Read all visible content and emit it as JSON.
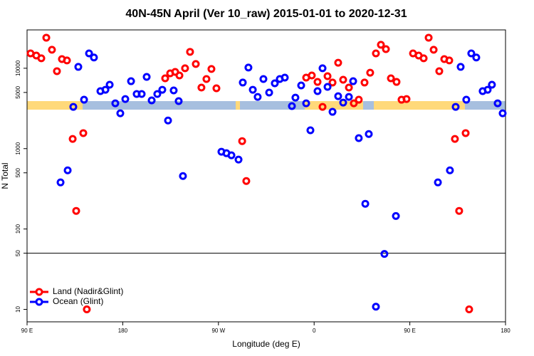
{
  "chart_data": {
    "type": "scatter",
    "title": "40N-45N April (Ver 10_raw)   2015-01-01 to 2020-12-31",
    "x_label": "Longitude (deg E)",
    "y_label": "N Total",
    "y_scale": "log",
    "legend": "bottomleft",
    "hline": 50,
    "xlim": [
      90,
      540
    ],
    "ylim": [
      7,
      30000
    ],
    "xticks": [
      {
        "value": 90,
        "label": "90 E"
      },
      {
        "value": 180,
        "label": "180"
      },
      {
        "value": 270,
        "label": "90 W"
      },
      {
        "value": 360,
        "label": "0"
      },
      {
        "value": 450,
        "label": "90 E"
      },
      {
        "value": 540,
        "label": "180"
      }
    ],
    "yticks": [
      10,
      50,
      100,
      500,
      1000,
      5000,
      10000
    ],
    "series": [
      {
        "name": "Land (Nadir&Glint)",
        "color": "#ff0000",
        "x": [
          93.3,
          98.7,
          103.4,
          108.1,
          113.4,
          118.1,
          122.8,
          127.5,
          132.9,
          136.2,
          142.9,
          146.2,
          219.9,
          224.6,
          229.3,
          233.3,
          238.6,
          243.3,
          248.7,
          254,
          258.7,
          263.4,
          268.1,
          292.3,
          296.2,
          352.5,
          357.8,
          363.2,
          367.9,
          372.6,
          377.3,
          382.6,
          387.3,
          392.7,
          397.3,
          402,
          407.4,
          412.7,
          418.1,
          422.8,
          427.5,
          432.2,
          437.5,
          442.2,
          446.9,
          453,
          458.3,
          463,
          467.7,
          472.4,
          477.7,
          482.4,
          487.1,
          492.4,
          496.4,
          502.5,
          505.8
        ],
        "values": [
          15300,
          14400,
          13300,
          24000,
          17000,
          9200,
          13000,
          12500,
          1320,
          168,
          1560,
          10,
          7500,
          8650,
          9000,
          8130,
          10000,
          16000,
          11300,
          5750,
          7350,
          9800,
          5630,
          1240,
          395,
          7650,
          8130,
          6760,
          3310,
          7960,
          6640,
          11700,
          7200,
          5750,
          3660,
          4060,
          6640,
          8800,
          15300,
          19600,
          17300,
          7500,
          6760,
          4060,
          4140,
          15300,
          14400,
          13300,
          24000,
          17000,
          9200,
          13000,
          12500,
          1320,
          168,
          1560,
          10
        ]
      },
      {
        "name": "Ocean (Glint)",
        "color": "#0000ff",
        "x": [
          121.5,
          128.2,
          133.5,
          138.2,
          143.6,
          148.3,
          152.9,
          159,
          163.7,
          167.7,
          173,
          177.7,
          182.4,
          187.8,
          193.1,
          197.8,
          202.5,
          207.2,
          212.5,
          217.2,
          222.6,
          227.9,
          232.6,
          236.6,
          272.8,
          277.5,
          282.2,
          288.9,
          292.9,
          298.2,
          302.3,
          306.9,
          312.3,
          317.7,
          323,
          327.7,
          332.4,
          339.1,
          342.4,
          347.8,
          352.5,
          356.5,
          363.2,
          367.9,
          372.6,
          377.3,
          382.6,
          387.3,
          392.7,
          396.7,
          402,
          408.1,
          411.4,
          418.1,
          426.1,
          436.9,
          476.4,
          487.7,
          493.1,
          497.8,
          503.1,
          507.8,
          512.5,
          518.5,
          523.2,
          527.2,
          532.6,
          537.3
        ],
        "values": [
          380,
          537,
          3310,
          10400,
          4060,
          15300,
          13600,
          5190,
          5400,
          6240,
          3660,
          2750,
          4140,
          6900,
          4780,
          4780,
          7800,
          3980,
          4780,
          5400,
          2240,
          5300,
          3900,
          456,
          914,
          877,
          826,
          730,
          6640,
          10200,
          5400,
          4400,
          7350,
          4980,
          6500,
          7350,
          7650,
          3380,
          4310,
          6110,
          3660,
          1690,
          5190,
          10000,
          5870,
          2870,
          4490,
          3740,
          4400,
          6900,
          1350,
          206,
          1520,
          10.8,
          49,
          145,
          380,
          537,
          3310,
          10400,
          4060,
          15300,
          13600,
          5190,
          5400,
          6240,
          3660,
          2750
        ]
      }
    ]
  }
}
